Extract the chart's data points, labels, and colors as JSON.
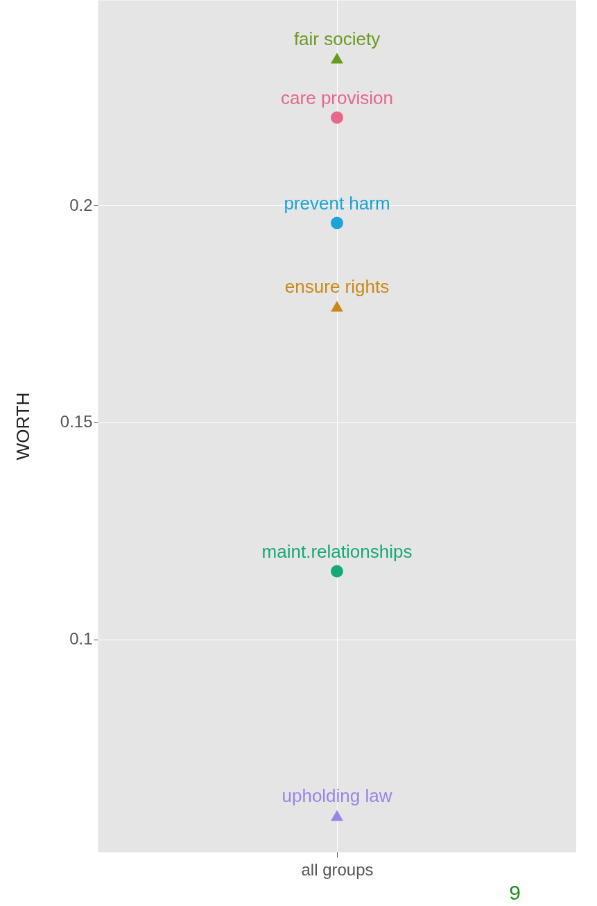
{
  "chart_data": {
    "type": "scatter",
    "ylabel": "WORTH",
    "categories": [
      "all groups"
    ],
    "ylim": [
      0.051,
      0.2474
    ],
    "yticks": [
      0.1,
      0.15,
      0.2
    ],
    "grid": true,
    "series": [
      {
        "name": "fair society",
        "color": "#6a9a1f",
        "marker": "triangle",
        "x": [
          "all groups"
        ],
        "values": [
          0.234
        ]
      },
      {
        "name": "care provision",
        "color": "#e7668a",
        "marker": "circle",
        "x": [
          "all groups"
        ],
        "values": [
          0.2203
        ]
      },
      {
        "name": "prevent harm",
        "color": "#1aa5d6",
        "marker": "circle",
        "x": [
          "all groups"
        ],
        "values": [
          0.196
        ]
      },
      {
        "name": "ensure rights",
        "color": "#c98a14",
        "marker": "triangle",
        "x": [
          "all groups"
        ],
        "values": [
          0.1768
        ]
      },
      {
        "name": "maint.relationships",
        "color": "#17a878",
        "marker": "circle",
        "x": [
          "all groups"
        ],
        "values": [
          0.1157
        ]
      },
      {
        "name": "upholding law",
        "color": "#9a85e6",
        "marker": "triangle",
        "x": [
          "all groups"
        ],
        "values": [
          0.0594
        ]
      }
    ],
    "annotations": [
      "9"
    ]
  }
}
